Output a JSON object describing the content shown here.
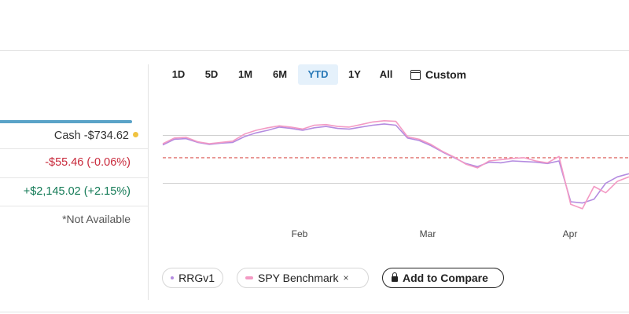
{
  "summary": {
    "cash_label": "Cash -$734.62",
    "cash_dot_color": "#f0c341",
    "day_change": "-$55.46 (-0.06%)",
    "total_change": "+$2,145.02 (+2.15%)",
    "not_available": "*Not Available"
  },
  "range_tabs": [
    {
      "label": "1D",
      "active": false
    },
    {
      "label": "5D",
      "active": false
    },
    {
      "label": "1M",
      "active": false
    },
    {
      "label": "6M",
      "active": false
    },
    {
      "label": "YTD",
      "active": true
    },
    {
      "label": "1Y",
      "active": false
    },
    {
      "label": "All",
      "active": false
    }
  ],
  "custom_tab": {
    "label": "Custom",
    "icon": "calendar-icon"
  },
  "legend": {
    "series_1": {
      "label": "RRGv1",
      "color": "#b48be0"
    },
    "series_2": {
      "label": "SPY Benchmark",
      "color": "#f39ac4",
      "remove_icon": "×"
    },
    "compare_button": {
      "label": "Add to Compare",
      "icon": "lock-icon"
    }
  },
  "chart_data": {
    "type": "line",
    "x_labels": [
      "Feb",
      "Mar",
      "Apr"
    ],
    "baseline_style": "dashed red",
    "series": [
      {
        "name": "RRGv1",
        "color": "#b48be0",
        "values": [
          0.5,
          1.4,
          1.5,
          0.9,
          0.6,
          0.8,
          0.9,
          1.8,
          2.4,
          2.8,
          3.3,
          3.1,
          2.8,
          3.2,
          3.4,
          3.1,
          3.0,
          3.3,
          3.6,
          3.8,
          3.6,
          1.6,
          1.2,
          0.4,
          -0.6,
          -1.5,
          -2.4,
          -2.9,
          -2.2,
          -2.3,
          -2.0,
          -2.1,
          -2.2,
          -2.4,
          -2.0,
          -8.4,
          -8.6,
          -8.0,
          -5.5,
          -4.5,
          -4.0
        ]
      },
      {
        "name": "SPY Benchmark",
        "color": "#f39ac4",
        "values": [
          0.7,
          1.6,
          1.7,
          1.0,
          0.7,
          0.9,
          1.1,
          2.2,
          2.8,
          3.2,
          3.5,
          3.3,
          3.0,
          3.6,
          3.7,
          3.4,
          3.3,
          3.7,
          4.1,
          4.3,
          4.2,
          1.8,
          1.4,
          0.6,
          -0.5,
          -1.4,
          -2.5,
          -3.1,
          -2.0,
          -1.8,
          -1.6,
          -1.5,
          -2.0,
          -2.3,
          -1.3,
          -8.8,
          -9.5,
          -6.0,
          -7.0,
          -5.2,
          -4.5
        ]
      }
    ],
    "ylim": [
      -10,
      6
    ]
  }
}
